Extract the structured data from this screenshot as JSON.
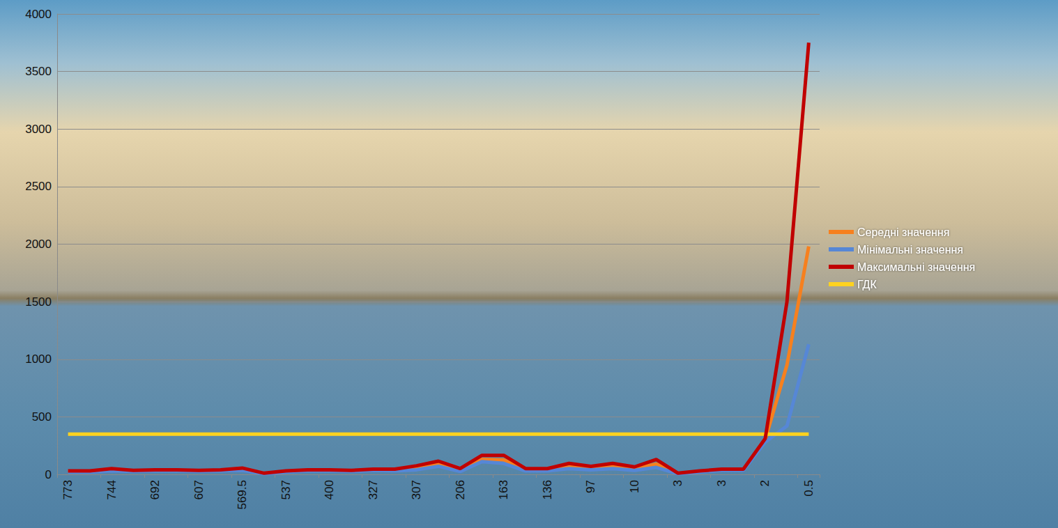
{
  "chart_data": {
    "type": "line",
    "categories": [
      "773",
      null,
      "744",
      null,
      "692",
      null,
      "607",
      null,
      "569.5",
      null,
      "537",
      null,
      "400",
      null,
      "327",
      null,
      "307",
      null,
      "206",
      null,
      "163",
      null,
      "136",
      null,
      "97",
      null,
      "10",
      null,
      "3",
      null,
      "3",
      null,
      "2",
      null,
      "0.5"
    ],
    "series": [
      {
        "name": "Середні значення",
        "color": "#f7801e",
        "values": [
          25,
          25,
          40,
          30,
          35,
          35,
          30,
          35,
          45,
          8,
          25,
          35,
          35,
          30,
          40,
          40,
          55,
          90,
          35,
          130,
          125,
          40,
          40,
          70,
          55,
          70,
          50,
          90,
          8,
          25,
          40,
          40,
          300,
          950,
          1980
        ]
      },
      {
        "name": "Мінімальні значення",
        "color": "#5687d6",
        "values": [
          20,
          20,
          30,
          25,
          30,
          30,
          25,
          30,
          35,
          5,
          20,
          30,
          30,
          25,
          35,
          30,
          40,
          70,
          25,
          110,
          95,
          30,
          30,
          50,
          40,
          50,
          35,
          60,
          5,
          20,
          35,
          35,
          280,
          420,
          1130
        ]
      },
      {
        "name": "Максимальні значення",
        "color": "#c00000",
        "values": [
          30,
          30,
          50,
          35,
          40,
          40,
          35,
          40,
          55,
          10,
          30,
          40,
          40,
          35,
          45,
          45,
          75,
          115,
          50,
          165,
          165,
          50,
          50,
          95,
          70,
          95,
          65,
          130,
          10,
          30,
          45,
          45,
          310,
          1500,
          3750
        ]
      },
      {
        "name": "ГДК",
        "color": "#ffd21f",
        "values": [
          350,
          350,
          350,
          350,
          350,
          350,
          350,
          350,
          350,
          350,
          350,
          350,
          350,
          350,
          350,
          350,
          350,
          350,
          350,
          350,
          350,
          350,
          350,
          350,
          350,
          350,
          350,
          350,
          350,
          350,
          350,
          350,
          350,
          350,
          350
        ]
      }
    ],
    "ylim": [
      0,
      4000
    ],
    "yticks": [
      0,
      500,
      1000,
      1500,
      2000,
      2500,
      3000,
      3500,
      4000
    ],
    "grid": true,
    "legend": "right"
  }
}
